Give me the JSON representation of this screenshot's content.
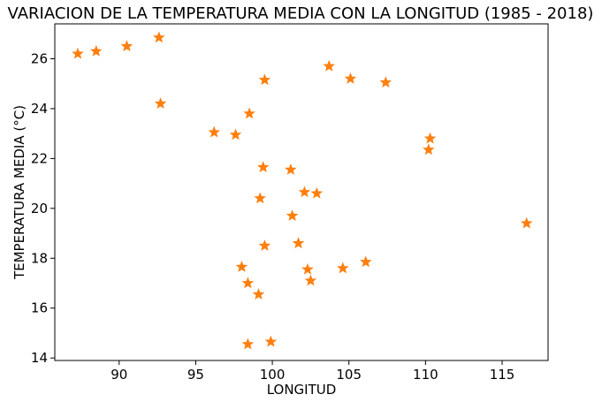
{
  "chart_data": {
    "type": "scatter",
    "title": "VARIACION DE LA TEMPERATURA MEDIA CON LA LONGITUD (1985 - 2018)",
    "xlabel": "LONGITUD",
    "ylabel": "TEMPERATURA MEDIA (°C)",
    "xlim": [
      85.8,
      118.0
    ],
    "ylim": [
      13.9,
      27.4
    ],
    "xticks": [
      90,
      95,
      100,
      105,
      110,
      115
    ],
    "yticks": [
      14,
      16,
      18,
      20,
      22,
      24,
      26
    ],
    "grid": false,
    "marker": "star",
    "color": "#ff7f0e",
    "points": [
      {
        "x": 87.3,
        "y": 26.2
      },
      {
        "x": 88.5,
        "y": 26.3
      },
      {
        "x": 90.5,
        "y": 26.5
      },
      {
        "x": 92.6,
        "y": 26.85
      },
      {
        "x": 92.7,
        "y": 24.2
      },
      {
        "x": 96.2,
        "y": 23.05
      },
      {
        "x": 97.6,
        "y": 22.95
      },
      {
        "x": 98.5,
        "y": 23.8
      },
      {
        "x": 99.5,
        "y": 25.15
      },
      {
        "x": 103.7,
        "y": 25.7
      },
      {
        "x": 105.1,
        "y": 25.2
      },
      {
        "x": 107.4,
        "y": 25.05
      },
      {
        "x": 110.3,
        "y": 22.8
      },
      {
        "x": 110.2,
        "y": 22.35
      },
      {
        "x": 99.4,
        "y": 21.65
      },
      {
        "x": 101.2,
        "y": 21.55
      },
      {
        "x": 102.1,
        "y": 20.65
      },
      {
        "x": 102.9,
        "y": 20.6
      },
      {
        "x": 99.2,
        "y": 20.4
      },
      {
        "x": 101.3,
        "y": 19.7
      },
      {
        "x": 116.6,
        "y": 19.4
      },
      {
        "x": 101.7,
        "y": 18.6
      },
      {
        "x": 99.5,
        "y": 18.5
      },
      {
        "x": 106.1,
        "y": 17.85
      },
      {
        "x": 98.0,
        "y": 17.65
      },
      {
        "x": 104.6,
        "y": 17.6
      },
      {
        "x": 102.3,
        "y": 17.55
      },
      {
        "x": 102.5,
        "y": 17.1
      },
      {
        "x": 98.4,
        "y": 17.0
      },
      {
        "x": 99.1,
        "y": 16.55
      },
      {
        "x": 99.9,
        "y": 14.65
      },
      {
        "x": 98.4,
        "y": 14.55
      }
    ]
  }
}
